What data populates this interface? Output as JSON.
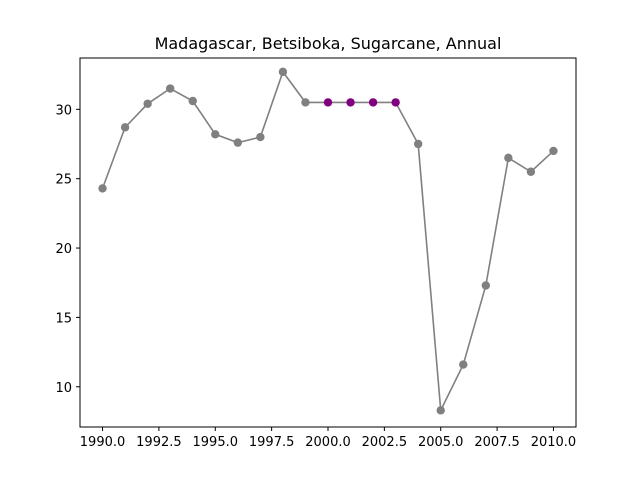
{
  "chart_data": {
    "type": "line",
    "title": "Madagascar, Betsiboka, Sugarcane, Annual",
    "xlabel": "",
    "ylabel": "",
    "xlim": [
      1989.0,
      2011.0
    ],
    "ylim": [
      7.1,
      33.7
    ],
    "x_ticks": [
      1990.0,
      1992.5,
      1995.0,
      1997.5,
      2000.0,
      2002.5,
      2005.0,
      2007.5,
      2010.0
    ],
    "x_tick_labels": [
      "1990.0",
      "1992.5",
      "1995.0",
      "1997.5",
      "2000.0",
      "2002.5",
      "2005.0",
      "2007.5",
      "2010.0"
    ],
    "y_ticks": [
      10,
      15,
      20,
      25,
      30
    ],
    "y_tick_labels": [
      "10",
      "15",
      "20",
      "25",
      "30"
    ],
    "line_color": "#808080",
    "series": [
      {
        "name": "Sugarcane",
        "x": [
          1990,
          1991,
          1992,
          1993,
          1994,
          1995,
          1996,
          1997,
          1998,
          1999,
          2000,
          2001,
          2002,
          2003,
          2004,
          2005,
          2006,
          2007,
          2008,
          2009,
          2010
        ],
        "y": [
          24.3,
          28.7,
          30.4,
          31.5,
          30.6,
          28.2,
          27.6,
          28.0,
          32.7,
          30.5,
          30.5,
          30.5,
          30.5,
          30.5,
          27.5,
          8.3,
          11.6,
          17.3,
          26.5,
          25.5,
          27.0
        ],
        "colors": [
          "#808080",
          "#808080",
          "#808080",
          "#808080",
          "#808080",
          "#808080",
          "#808080",
          "#808080",
          "#808080",
          "#808080",
          "#800080",
          "#800080",
          "#800080",
          "#800080",
          "#808080",
          "#808080",
          "#808080",
          "#808080",
          "#808080",
          "#808080",
          "#808080"
        ]
      }
    ]
  }
}
